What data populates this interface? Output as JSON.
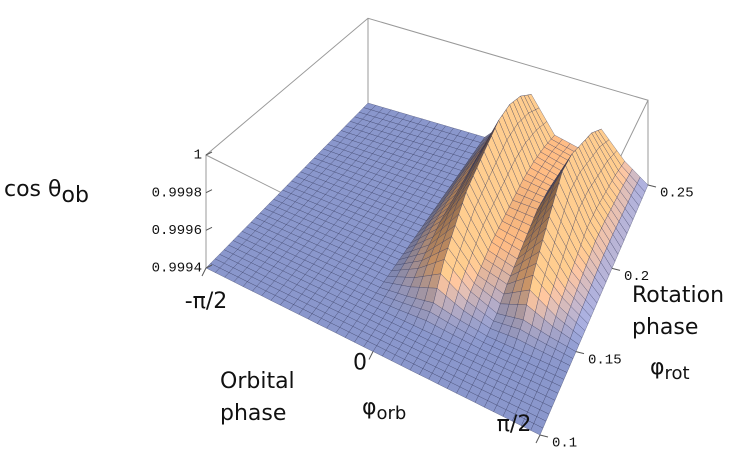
{
  "chart_data": {
    "type": "surface",
    "zlabel": {
      "main": "cos θ",
      "sub": "ob"
    },
    "xlabel": {
      "lines": [
        "Orbital",
        "phase"
      ],
      "symbol": "φ",
      "sub": "orb"
    },
    "ylabel": {
      "lines": [
        "Rotation",
        "phase"
      ],
      "symbol": "φ",
      "sub": "rot"
    },
    "xlim": [
      -1.5708,
      1.5708
    ],
    "xticks": [
      {
        "value": -1.5708,
        "label": "-π/2"
      },
      0,
      {
        "value": 1.5708,
        "label": "π/2"
      }
    ],
    "ylim": [
      0.1,
      0.25
    ],
    "yticks": [
      0.1,
      0.15,
      0.2,
      0.25
    ],
    "zlim": [
      0.9994,
      1
    ],
    "zticks": [
      0.9994,
      0.9996,
      0.9998,
      1
    ],
    "colormap": [
      "#8a97cc",
      "#f2b27c"
    ],
    "x": [
      -1.5708,
      -1.309,
      -1.0472,
      -0.7854,
      -0.5236,
      -0.2618,
      0,
      0.2618,
      0.5236,
      0.7854,
      1.0472,
      1.309,
      1.5708
    ],
    "y": [
      0.1,
      0.1125,
      0.125,
      0.1375,
      0.15,
      0.1625,
      0.175,
      0.1875,
      0.2,
      0.2125,
      0.225,
      0.2375,
      0.25
    ],
    "z": [
      [
        0.9994,
        0.9994,
        0.9994,
        0.9994,
        0.9994,
        0.9994,
        0.9994,
        0.9994,
        0.9994,
        0.9994,
        0.9994,
        0.9994,
        0.9994
      ],
      [
        0.9994,
        0.9994,
        0.9994,
        0.9994,
        0.9994,
        0.9994,
        0.9994,
        0.9994,
        0.9994,
        0.9994,
        0.9994,
        0.9994,
        0.9994
      ],
      [
        0.9994,
        0.9994,
        0.9994,
        0.9994,
        0.9994,
        0.9994,
        0.9994,
        0.9994,
        0.9994,
        0.9994,
        0.9994,
        0.9994,
        0.9994
      ],
      [
        0.9994,
        0.9994,
        0.9994,
        0.9994,
        0.9994,
        0.9994,
        0.99942,
        0.99945,
        0.99942,
        0.9994,
        0.9994,
        0.9994,
        0.9994
      ],
      [
        0.9994,
        0.9994,
        0.9994,
        0.9994,
        0.9994,
        0.9994,
        0.99948,
        0.9996,
        0.99948,
        0.99942,
        0.99945,
        0.99942,
        0.9994
      ],
      [
        0.9994,
        0.9994,
        0.9994,
        0.9994,
        0.9994,
        0.9994,
        0.99952,
        0.9997,
        0.99952,
        0.99948,
        0.9996,
        0.99948,
        0.9994
      ],
      [
        0.9994,
        0.9994,
        0.9994,
        0.9994,
        0.9994,
        0.9994,
        0.99956,
        0.9998,
        0.99956,
        0.99952,
        0.9997,
        0.99952,
        0.9994
      ],
      [
        0.9994,
        0.9994,
        0.9994,
        0.9994,
        0.9994,
        0.9994,
        0.99958,
        0.99985,
        0.99958,
        0.99956,
        0.9998,
        0.99956,
        0.9994
      ],
      [
        0.9994,
        0.9994,
        0.9994,
        0.9994,
        0.9994,
        0.9994,
        0.9996,
        0.9999,
        0.9996,
        0.9996,
        0.9999,
        0.9996,
        0.9994
      ],
      [
        0.9994,
        0.9994,
        0.9994,
        0.9994,
        0.9994,
        0.9994,
        0.99962,
        0.99995,
        0.99962,
        0.9996,
        0.9999,
        0.9996,
        0.9994
      ],
      [
        0.9994,
        0.9994,
        0.9994,
        0.9994,
        0.9994,
        0.9994,
        0.99962,
        0.99995,
        0.99962,
        0.99958,
        0.99985,
        0.99958,
        0.9994
      ],
      [
        0.9994,
        0.9994,
        0.9994,
        0.9994,
        0.9994,
        0.9994,
        0.9996,
        0.9999,
        0.9996,
        0.99956,
        0.9998,
        0.99956,
        0.9994
      ],
      [
        0.9994,
        0.9994,
        0.9994,
        0.9994,
        0.9994,
        0.9994,
        0.99956,
        0.9998,
        0.99956,
        0.99952,
        0.9997,
        0.99952,
        0.9994
      ]
    ]
  }
}
